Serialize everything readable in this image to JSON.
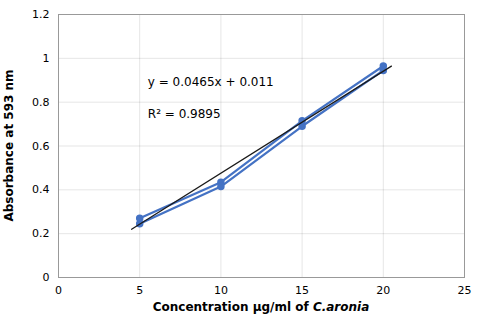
{
  "chart_data": {
    "type": "line",
    "x": [
      5,
      10,
      15,
      20
    ],
    "series": [
      {
        "color": "#4472C4",
        "marker": "circle",
        "values": [
          0.27,
          0.435,
          0.715,
          0.965
        ]
      },
      {
        "color": "#4472C4",
        "marker": "circle",
        "values": [
          0.245,
          0.415,
          0.69,
          0.945
        ]
      },
      {
        "color": "#1a1a1a",
        "x": [
          4.5,
          20.5
        ],
        "values": [
          0.22025,
          0.96425
        ]
      }
    ],
    "annotations": [
      "y = 0.0465x + 0.011",
      "R² = 0.9895"
    ],
    "xlabel": "Concentration μg/ml of C.aronia",
    "ylabel": "Absorbance at 593 nm",
    "xlim": [
      0,
      25
    ],
    "ylim": [
      0,
      1.2
    ],
    "xticks": [
      0,
      5,
      10,
      15,
      20,
      25
    ],
    "yticks": [
      0,
      0.2,
      0.4,
      0.6,
      0.8,
      1,
      1.2
    ],
    "grid": true
  }
}
